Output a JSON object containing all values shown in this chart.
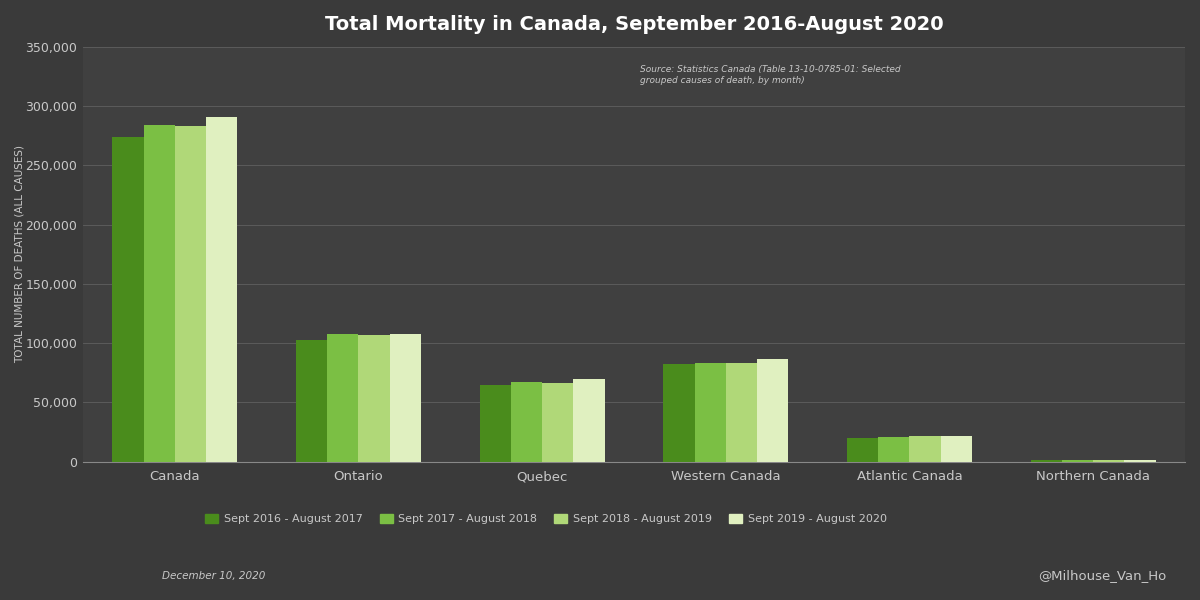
{
  "title": "Total Mortality in Canada, September 2016-August 2020",
  "ylabel": "TOTAL NUMBER OF DEATHS (ALL CAUSES)",
  "source_text": "Source: Statistics Canada (Table 13-10-0785-01: Selected\ngrouped causes of death, by month)",
  "date_text": "December 10, 2020",
  "watermark": "@Milhouse_Van_Ho",
  "categories": [
    "Canada",
    "Ontario",
    "Quebec",
    "Western Canada",
    "Atlantic Canada",
    "Northern Canada"
  ],
  "series_labels": [
    "Sept 2016 - August 2017",
    "Sept 2017 - August 2018",
    "Sept 2018 - August 2019",
    "Sept 2019 - August 2020"
  ],
  "series_colors": [
    "#4a8c1c",
    "#7bbf44",
    "#b0d878",
    "#e0f0c0"
  ],
  "values": [
    [
      274000,
      103000,
      65000,
      82000,
      20000,
      1200
    ],
    [
      284000,
      108000,
      67000,
      83500,
      21000,
      1200
    ],
    [
      283000,
      107000,
      66500,
      83500,
      21500,
      1300
    ],
    [
      291000,
      108000,
      70000,
      87000,
      21500,
      1200
    ]
  ],
  "ylim": [
    0,
    350000
  ],
  "yticks": [
    0,
    50000,
    100000,
    150000,
    200000,
    250000,
    300000,
    350000
  ],
  "background_color": "#3a3a3a",
  "plot_bg_color": "#404040",
  "grid_color": "#606060",
  "text_color": "#c8c8c8",
  "title_color": "#ffffff",
  "axis_line_color": "#888888"
}
